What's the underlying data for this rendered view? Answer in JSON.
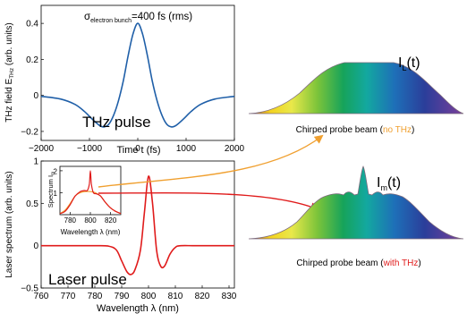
{
  "chart_data": [
    {
      "type": "line",
      "annotation": "σ",
      "annotation_sub": "electron bunch",
      "annotation_rest": "=400 fs (rms)",
      "ylabel": "THz field E",
      "ylabel_sub": "THz",
      "ylabel_rest": " (arb. units)",
      "xlabel": "Time t (fs)",
      "inner_label": "THz pulse",
      "xlim": [
        -2000,
        2000
      ],
      "ylim": [
        -0.25,
        0.5
      ],
      "xticks": [
        "−2000",
        "−1000",
        "0",
        "1000",
        "2000"
      ],
      "yticks": [
        "−0.2",
        "0",
        "0.2",
        "0.4"
      ],
      "series": [
        {
          "color": "#1f5fa8",
          "x": [
            -2000,
            -1600,
            -1300,
            -1100,
            -950,
            -800,
            -700,
            -600,
            -500,
            -400,
            -300,
            -200,
            -100,
            0,
            100,
            200,
            300,
            400,
            500,
            600,
            700,
            800,
            950,
            1100,
            1300,
            1600,
            2000
          ],
          "y": [
            -0.005,
            -0.02,
            -0.05,
            -0.09,
            -0.13,
            -0.165,
            -0.175,
            -0.16,
            -0.11,
            -0.03,
            0.08,
            0.22,
            0.34,
            0.4,
            0.34,
            0.22,
            0.08,
            -0.03,
            -0.11,
            -0.16,
            -0.175,
            -0.165,
            -0.13,
            -0.09,
            -0.05,
            -0.02,
            -0.005
          ]
        }
      ]
    },
    {
      "type": "line",
      "ylabel": "Laser spectrum (arb. units)",
      "xlabel": "Wavelength λ (nm)",
      "inner_label": "Laser pulse",
      "xlim": [
        760,
        832
      ],
      "ylim": [
        -0.5,
        1.0
      ],
      "xticks": [
        "760",
        "770",
        "780",
        "790",
        "800",
        "810",
        "820",
        "830"
      ],
      "yticks": [
        "−0.5",
        "0",
        "0.5",
        "1"
      ],
      "series": [
        {
          "color": "#e01b1b",
          "x": [
            760,
            770,
            780,
            785,
            788,
            790,
            792,
            793.5,
            795,
            797,
            798.5,
            800,
            801.5,
            803,
            804.5,
            806,
            808,
            810,
            812,
            818,
            832
          ],
          "y": [
            0,
            0,
            0,
            -0.005,
            -0.05,
            -0.18,
            -0.31,
            -0.34,
            -0.28,
            -0.05,
            0.4,
            0.82,
            0.5,
            -0.05,
            -0.24,
            -0.24,
            -0.1,
            -0.02,
            0,
            0,
            0
          ]
        }
      ]
    },
    {
      "type": "line",
      "ylabel": "Spectrum I",
      "ylabel_sub": "m",
      "xlabel": "Wavelength λ (nm)",
      "xlim": [
        770,
        830
      ],
      "ylim": [
        0,
        2.2
      ],
      "xticks": [
        "780",
        "800",
        "820"
      ],
      "yticks": [
        "1",
        "2"
      ],
      "series": [
        {
          "name": "with THz",
          "color": "#e01b1b",
          "x": [
            770,
            775,
            780,
            785,
            790,
            794,
            797,
            799,
            800,
            801,
            803,
            806,
            810,
            815,
            820,
            825,
            830
          ],
          "y": [
            0.05,
            0.15,
            0.45,
            0.85,
            1.05,
            1.1,
            1.1,
            1.4,
            2.0,
            1.4,
            1.0,
            0.95,
            0.85,
            0.55,
            0.3,
            0.15,
            0.05
          ]
        },
        {
          "name": "no THz",
          "color": "#f0a030",
          "x": [
            770,
            775,
            780,
            785,
            790,
            795,
            800,
            805,
            810,
            815,
            820,
            825,
            830
          ],
          "y": [
            0.05,
            0.2,
            0.5,
            0.85,
            1.0,
            1.05,
            1.05,
            1.0,
            0.85,
            0.55,
            0.3,
            0.15,
            0.05
          ]
        }
      ]
    }
  ],
  "probe_no_thz": {
    "label_symbol": "I",
    "label_sub": "L",
    "label_rest": "(t)",
    "caption_main": "Chirped probe beam (",
    "caption_color": "no THz",
    "caption_end": ")",
    "caption_color_hex": "#f0a030"
  },
  "probe_with_thz": {
    "label_symbol": "I",
    "label_sub": "m",
    "label_rest": "(t)",
    "caption_main": "Chirped probe beam (",
    "caption_color": "with THz",
    "caption_end": ")",
    "caption_color_hex": "#e01b1b"
  },
  "colors": {
    "arrow_orange": "#f0a030",
    "arrow_red": "#e01b1b",
    "thz_curve": "#1f5fa8"
  }
}
